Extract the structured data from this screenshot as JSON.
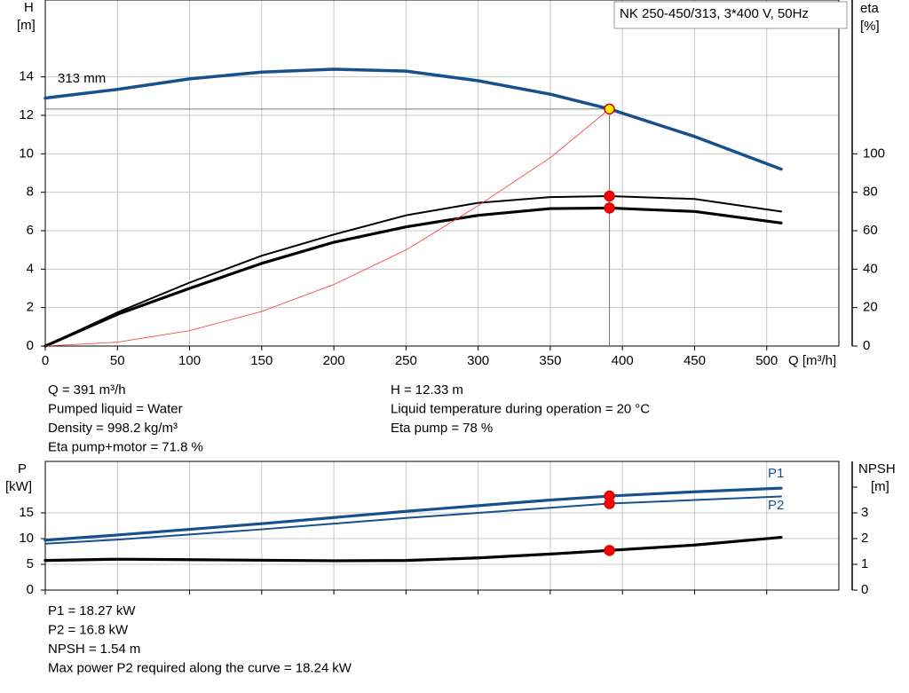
{
  "chart_data": [
    {
      "type": "line",
      "title": "NK 250-450/313, 3*400 V, 50Hz",
      "ylabel": "H",
      "yunit": "[m]",
      "y2label": "eta",
      "y2unit": "[%]",
      "xlabel": "Q [m³/h]",
      "annotation": "313 mm",
      "xlim": [
        0,
        550
      ],
      "xticks": [
        0,
        50,
        100,
        150,
        200,
        250,
        300,
        350,
        400,
        450,
        500
      ],
      "ylim": [
        0,
        18
      ],
      "yticks": [
        0,
        2,
        4,
        6,
        8,
        10,
        12,
        14
      ],
      "y2lim": [
        0,
        180
      ],
      "y2ticks": [
        0,
        20,
        40,
        60,
        80,
        100
      ],
      "grid": true,
      "series": [
        {
          "color": "#17508c",
          "x": [
            0,
            50,
            100,
            150,
            200,
            250,
            300,
            350,
            391,
            450,
            510
          ],
          "values": [
            12.9,
            13.35,
            13.9,
            14.25,
            14.4,
            14.3,
            13.8,
            13.1,
            12.33,
            10.9,
            9.2
          ]
        },
        {
          "color": "#000000",
          "axis": "y2",
          "x": [
            0,
            50,
            100,
            150,
            200,
            250,
            300,
            350,
            391,
            450,
            510
          ],
          "values": [
            0,
            17.5,
            33,
            47,
            58,
            68,
            74.5,
            77.5,
            78,
            76.5,
            70
          ]
        },
        {
          "color": "#000000",
          "axis": "y2",
          "x": [
            0,
            50,
            100,
            150,
            200,
            250,
            300,
            350,
            391,
            450,
            510
          ],
          "values": [
            0,
            16.5,
            30,
            43,
            54,
            62,
            68,
            71.5,
            71.8,
            70,
            64
          ]
        },
        {
          "color": "#ff3030",
          "x": [
            0,
            50,
            100,
            150,
            200,
            250,
            300,
            350,
            391
          ],
          "values": [
            0,
            0.2,
            0.8,
            1.8,
            3.2,
            5.0,
            7.3,
            9.8,
            12.33
          ]
        }
      ],
      "info": [
        {
          "label": "Q =",
          "value": 391,
          "unit": "m³/h"
        },
        {
          "text": "Pumped liquid = Water"
        },
        {
          "label": "Density =",
          "value": 998.2,
          "unit": "kg/m³"
        },
        {
          "label": "Eta pump+motor =",
          "value": 71.8,
          "unit": "%"
        },
        {
          "label": "H =",
          "value": 12.33,
          "unit": "m"
        },
        {
          "label": "Liquid temperature during operation =",
          "value": 20,
          "unit": "°C"
        },
        {
          "label": "Eta pump =",
          "value": 78,
          "unit": "%"
        }
      ]
    },
    {
      "type": "line",
      "ylabel": "P",
      "yunit": "[kW]",
      "y2label": "NPSH",
      "y2unit": "[m]",
      "xlim": [
        0,
        550
      ],
      "xticks": [
        0,
        50,
        100,
        150,
        200,
        250,
        300,
        350,
        400,
        450,
        500
      ],
      "ylim": [
        0,
        25
      ],
      "yticks": [
        0,
        5,
        10,
        15
      ],
      "y2lim": [
        0,
        5
      ],
      "y2ticks": [
        0,
        1,
        2,
        3
      ],
      "grid": true,
      "series": [
        {
          "name": "P1",
          "color": "#17508c",
          "x": [
            0,
            50,
            100,
            150,
            200,
            250,
            300,
            350,
            391,
            450,
            510
          ],
          "values": [
            9.7,
            10.7,
            11.8,
            12.9,
            14.1,
            15.3,
            16.4,
            17.5,
            18.27,
            19.1,
            19.8
          ]
        },
        {
          "name": "P2",
          "color": "#17508c",
          "x": [
            0,
            50,
            100,
            150,
            200,
            250,
            300,
            350,
            391,
            450,
            510
          ],
          "values": [
            9.0,
            9.8,
            10.8,
            11.8,
            12.9,
            14.0,
            15.0,
            16.0,
            16.8,
            17.5,
            18.2
          ]
        },
        {
          "color": "#000000",
          "axis": "y2",
          "x": [
            0,
            50,
            100,
            200,
            250,
            300,
            350,
            391,
            450,
            510
          ],
          "values": [
            1.15,
            1.2,
            1.18,
            1.14,
            1.15,
            1.25,
            1.4,
            1.54,
            1.75,
            2.05
          ]
        }
      ],
      "info": [
        {
          "label": "P1 =",
          "value": 18.27,
          "unit": "kW"
        },
        {
          "label": "P2 =",
          "value": 16.8,
          "unit": "kW"
        },
        {
          "label": "NPSH =",
          "value": 1.54,
          "unit": "m"
        },
        {
          "label": "Max power P2 required along the curve =",
          "value": 18.24,
          "unit": "kW"
        }
      ]
    }
  ]
}
